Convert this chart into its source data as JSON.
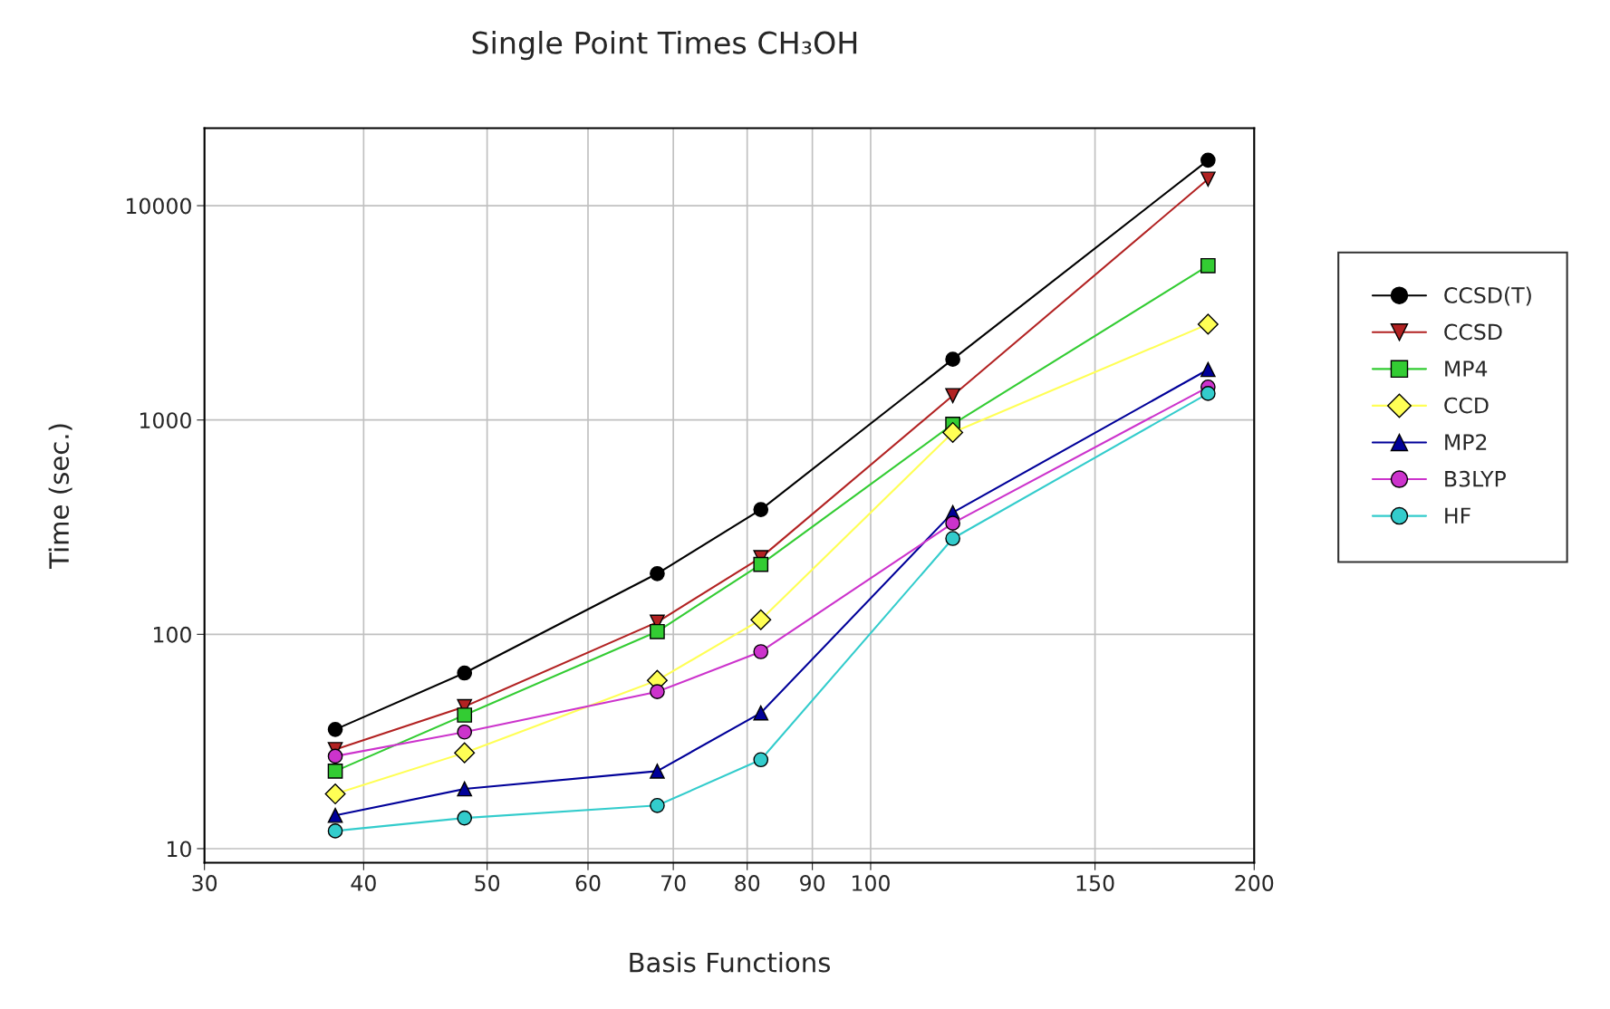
{
  "chart_data": {
    "type": "line",
    "title": "Single Point Times CH₃OH",
    "xlabel": "Basis Functions",
    "ylabel": "Time (sec.)",
    "log": "xy",
    "grid": true,
    "legend": "right",
    "x": [
      38,
      48,
      68,
      82,
      116,
      184
    ],
    "xlim": [
      30,
      200
    ],
    "xticks": [
      30,
      40,
      50,
      60,
      70,
      80,
      90,
      100,
      150,
      200
    ],
    "ylim": [
      8.6,
      23000
    ],
    "yticks": [
      10,
      100,
      1000,
      10000
    ],
    "series": [
      {
        "name": "CCSD(T)",
        "color": "#000000",
        "marker": "circle",
        "values": [
          36,
          66,
          192,
          382,
          1920,
          16300
        ]
      },
      {
        "name": "CCSD",
        "color": "#b22222",
        "marker": "triangle_down",
        "values": [
          29,
          46,
          114,
          228,
          1300,
          13300
        ]
      },
      {
        "name": "MP4",
        "color": "#33cc33",
        "marker": "square",
        "values": [
          23,
          42,
          103,
          212,
          955,
          5250
        ]
      },
      {
        "name": "CCD",
        "color": "#ffff55",
        "marker": "diamond",
        "values": [
          18,
          28,
          61,
          117,
          875,
          2800
        ]
      },
      {
        "name": "MP2",
        "color": "#000099",
        "marker": "triangle",
        "values": [
          14.3,
          19,
          23,
          43,
          370,
          1720
        ]
      },
      {
        "name": "B3LYP",
        "color": "#cc33cc",
        "marker": "circle",
        "values": [
          27,
          35,
          54,
          83,
          330,
          1425
        ]
      },
      {
        "name": "HF",
        "color": "#33cccc",
        "marker": "circle",
        "values": [
          12.1,
          13.9,
          15.9,
          26,
          280,
          1330
        ]
      }
    ]
  }
}
